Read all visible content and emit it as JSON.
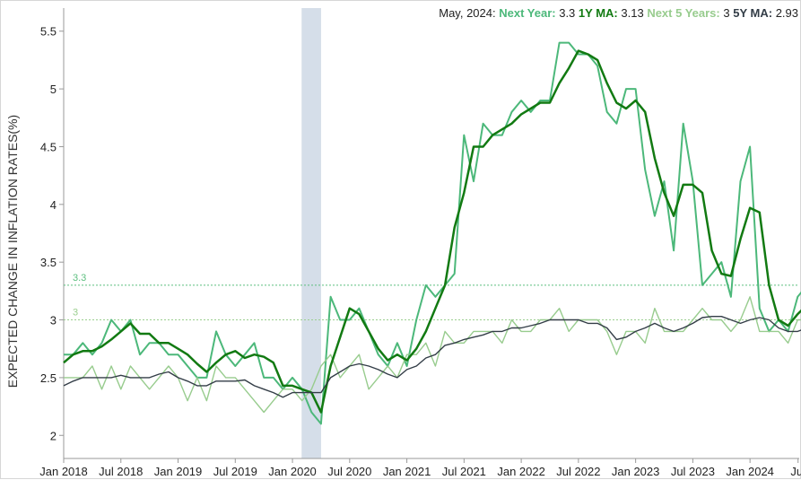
{
  "legend": {
    "date": "May, 2024:",
    "next_year_label": "Next Year:",
    "next_year_value": "3.3",
    "ma1_label": "1Y MA:",
    "ma1_value": "3.13",
    "next5_label": "Next 5 Years:",
    "next5_value": "3",
    "ma5_label": "5Y MA:",
    "ma5_value": "2.93"
  },
  "chart_data": {
    "type": "line",
    "ylabel": "EXPECTED CHANGE IN INFLATION RATES(%)",
    "xlabel": "",
    "ylim": [
      1.8,
      5.7
    ],
    "yticks": [
      2,
      2.5,
      3,
      3.5,
      4,
      4.5,
      5,
      5.5
    ],
    "xlim": [
      2018.0,
      2024.43
    ],
    "xticks": [
      {
        "x": 2018.0,
        "label": "Jan 2018"
      },
      {
        "x": 2018.5,
        "label": "Jul 2018"
      },
      {
        "x": 2019.0,
        "label": "Jan 2019"
      },
      {
        "x": 2019.5,
        "label": "Jul 2019"
      },
      {
        "x": 2020.0,
        "label": "Jan 2020"
      },
      {
        "x": 2020.5,
        "label": "Jul 2020"
      },
      {
        "x": 2021.0,
        "label": "Jan 2021"
      },
      {
        "x": 2021.5,
        "label": "Jul 2021"
      },
      {
        "x": 2022.0,
        "label": "Jan 2022"
      },
      {
        "x": 2022.5,
        "label": "Jul 2022"
      },
      {
        "x": 2023.0,
        "label": "Jan 2023"
      },
      {
        "x": 2023.5,
        "label": "Jul 2023"
      },
      {
        "x": 2024.0,
        "label": "Jan 2024"
      },
      {
        "x": 2024.42,
        "label": "Jul"
      }
    ],
    "recession_band": [
      2020.08,
      2020.25
    ],
    "ref_lines": [
      {
        "value": 3.3,
        "label": "3.3",
        "color": "#5cbf7f"
      },
      {
        "value": 3.0,
        "label": "3",
        "color": "#9bcf8f"
      }
    ],
    "start": 2018.0,
    "step": 0.08333,
    "series": [
      {
        "name": "Next Year",
        "color": "#4cb87a",
        "width": 2,
        "values": [
          2.7,
          2.7,
          2.8,
          2.7,
          2.8,
          3.0,
          2.9,
          3.0,
          2.7,
          2.8,
          2.8,
          2.7,
          2.7,
          2.6,
          2.5,
          2.5,
          2.9,
          2.7,
          2.6,
          2.7,
          2.8,
          2.5,
          2.5,
          2.4,
          2.5,
          2.4,
          2.2,
          2.1,
          3.2,
          3.0,
          3.0,
          3.1,
          2.9,
          2.7,
          2.6,
          2.8,
          2.6,
          3.0,
          3.3,
          3.2,
          3.3,
          3.4,
          4.6,
          4.2,
          4.7,
          4.6,
          4.6,
          4.8,
          4.9,
          4.8,
          4.9,
          4.9,
          5.4,
          5.4,
          5.3,
          5.3,
          5.2,
          4.8,
          4.7,
          5.0,
          5.0,
          4.3,
          3.9,
          4.2,
          3.6,
          4.7,
          4.2,
          3.3,
          3.4,
          3.5,
          3.2,
          4.2,
          4.5,
          3.1,
          2.9,
          3.0,
          2.9,
          3.2,
          3.3
        ]
      },
      {
        "name": "Next 5 Years",
        "color": "#98cc8e",
        "width": 1.4,
        "values": [
          2.5,
          2.5,
          2.5,
          2.6,
          2.4,
          2.6,
          2.4,
          2.6,
          2.5,
          2.4,
          2.5,
          2.6,
          2.5,
          2.3,
          2.5,
          2.3,
          2.6,
          2.5,
          2.5,
          2.4,
          2.3,
          2.2,
          2.3,
          2.4,
          2.4,
          2.3,
          2.4,
          2.6,
          2.7,
          2.5,
          2.6,
          2.7,
          2.4,
          2.5,
          2.6,
          2.5,
          2.7,
          2.7,
          2.8,
          2.6,
          2.9,
          2.8,
          2.8,
          2.9,
          2.9,
          2.9,
          2.8,
          3.0,
          2.9,
          2.9,
          3.0,
          3.0,
          3.1,
          2.9,
          3.0,
          3.0,
          3.0,
          2.9,
          2.7,
          2.9,
          2.9,
          2.8,
          3.1,
          2.9,
          2.9,
          2.9,
          3.0,
          3.1,
          3.0,
          3.0,
          2.9,
          3.0,
          3.2,
          2.9,
          2.9,
          2.9,
          2.8,
          3.0,
          3.0
        ]
      },
      {
        "name": "1Y MA",
        "color": "#127a12",
        "width": 2.5,
        "values": [
          2.63,
          2.7,
          2.73,
          2.73,
          2.77,
          2.83,
          2.9,
          2.97,
          2.88,
          2.88,
          2.8,
          2.8,
          2.75,
          2.7,
          2.62,
          2.55,
          2.63,
          2.7,
          2.73,
          2.67,
          2.7,
          2.68,
          2.63,
          2.43,
          2.43,
          2.4,
          2.37,
          2.2,
          2.6,
          2.85,
          3.1,
          3.05,
          2.9,
          2.75,
          2.65,
          2.7,
          2.65,
          2.75,
          2.9,
          3.1,
          3.3,
          3.8,
          4.1,
          4.5,
          4.5,
          4.6,
          4.65,
          4.7,
          4.78,
          4.83,
          4.88,
          4.88,
          5.05,
          5.18,
          5.33,
          5.3,
          5.25,
          5.05,
          4.88,
          4.83,
          4.9,
          4.8,
          4.4,
          4.1,
          3.9,
          4.17,
          4.17,
          4.1,
          3.6,
          3.4,
          3.38,
          3.7,
          3.97,
          3.93,
          3.3,
          3.0,
          2.95,
          3.05,
          3.13
        ]
      },
      {
        "name": "5Y MA",
        "color": "#333d47",
        "width": 1.4,
        "values": [
          2.43,
          2.47,
          2.5,
          2.5,
          2.5,
          2.5,
          2.52,
          2.5,
          2.5,
          2.5,
          2.53,
          2.55,
          2.5,
          2.47,
          2.43,
          2.43,
          2.47,
          2.47,
          2.47,
          2.48,
          2.43,
          2.4,
          2.37,
          2.33,
          2.37,
          2.37,
          2.37,
          2.37,
          2.5,
          2.55,
          2.6,
          2.62,
          2.6,
          2.57,
          2.53,
          2.5,
          2.57,
          2.6,
          2.67,
          2.7,
          2.78,
          2.8,
          2.83,
          2.85,
          2.87,
          2.9,
          2.9,
          2.93,
          2.93,
          2.95,
          2.97,
          3.0,
          3.0,
          3.0,
          3.0,
          2.97,
          2.97,
          2.93,
          2.83,
          2.85,
          2.9,
          2.93,
          2.97,
          2.93,
          2.9,
          2.93,
          2.97,
          3.02,
          3.03,
          3.03,
          3.0,
          2.97,
          3.0,
          3.02,
          3.0,
          2.93,
          2.9,
          2.9,
          2.93
        ]
      }
    ]
  }
}
